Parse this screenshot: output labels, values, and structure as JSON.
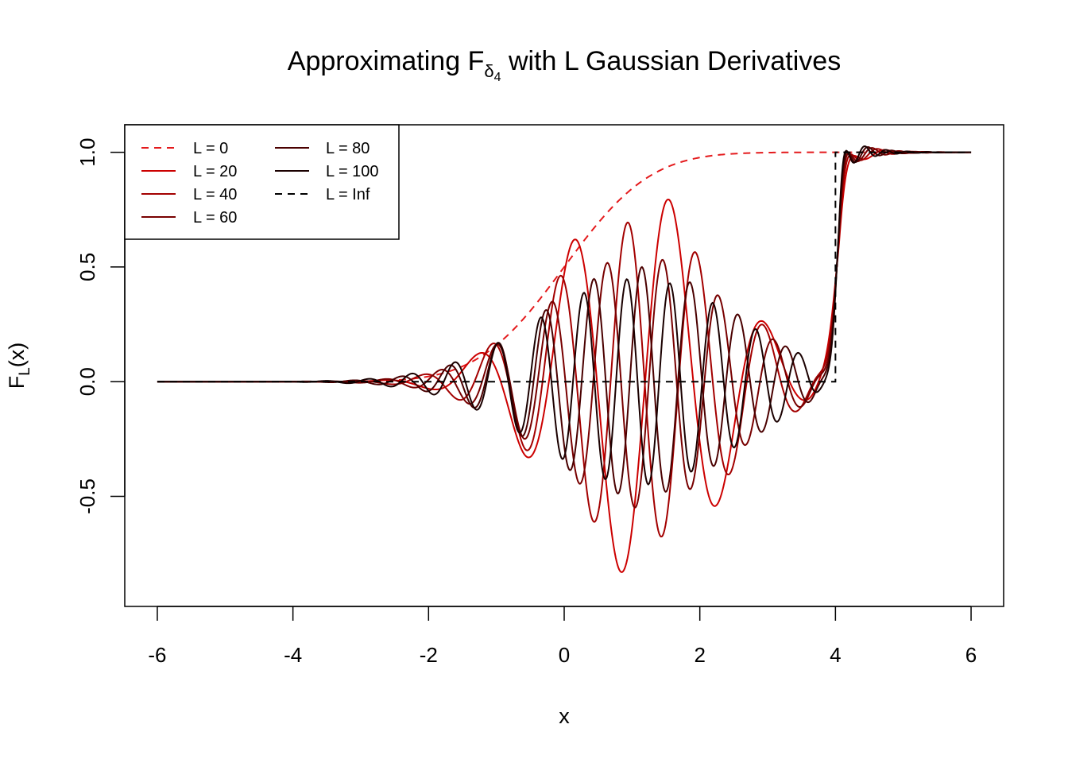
{
  "chart_data": {
    "type": "line",
    "title": {
      "main": "Approximating F",
      "sub": "δ",
      "subsub": "4",
      "rest": " with L Gaussian Derivatives"
    },
    "xlabel": "x",
    "ylabel": {
      "main": "F",
      "sub": "L",
      "rest": "(x)"
    },
    "xlim": [
      -6.48,
      6.48
    ],
    "ylim": [
      -0.98,
      1.12
    ],
    "x_ticks": [
      -6,
      -4,
      -2,
      0,
      2,
      4,
      6
    ],
    "x_tick_labels": [
      "-6",
      "-4",
      "-2",
      "0",
      "2",
      "4",
      "6"
    ],
    "y_ticks": [
      -0.5,
      0,
      0.5,
      1
    ],
    "y_tick_labels": [
      "-0.5",
      "0.0",
      "0.5",
      "1.0"
    ],
    "grid": false,
    "legend_position": "top-left",
    "x_range": [
      -6,
      6
    ],
    "series": [
      {
        "name": "L = 0",
        "color": "#e41a1c",
        "dash": "dashed",
        "approx": {
          "kind": "cdf",
          "mu": 0,
          "sigma": 1
        }
      },
      {
        "name": "L = 20",
        "color": "#cc0000",
        "dash": "solid",
        "approx": {
          "kind": "gauss",
          "L": 20,
          "amp": 0.85
        }
      },
      {
        "name": "L = 40",
        "color": "#a30000",
        "dash": "solid",
        "approx": {
          "kind": "gauss",
          "L": 40,
          "amp": 0.7
        }
      },
      {
        "name": "L = 60",
        "color": "#780000",
        "dash": "solid",
        "approx": {
          "kind": "gauss",
          "L": 60,
          "amp": 0.55
        }
      },
      {
        "name": "L = 80",
        "color": "#4a0000",
        "dash": "solid",
        "approx": {
          "kind": "gauss",
          "L": 80,
          "amp": 0.5
        }
      },
      {
        "name": "L = 100",
        "color": "#1a0000",
        "dash": "solid",
        "approx": {
          "kind": "gauss",
          "L": 100,
          "amp": 0.45
        }
      },
      {
        "name": "L = Inf",
        "color": "#000000",
        "dash": "dashed",
        "approx": {
          "kind": "step",
          "at": 4
        }
      }
    ]
  }
}
